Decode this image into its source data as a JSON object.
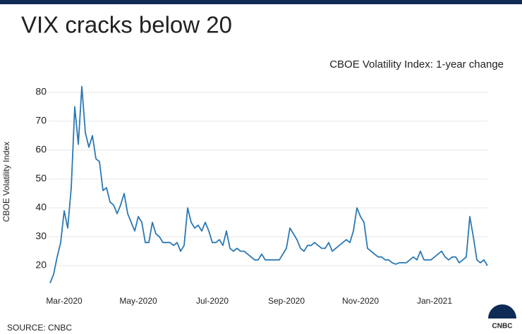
{
  "chart_data": {
    "type": "line",
    "title": "VIX cracks below 20",
    "subtitle": "CBOE Volatility Index: 1-year change",
    "y_label": "CBOE Volatility Index",
    "source": "SOURCE: CNBC",
    "logo": "CNBC",
    "categories": [
      null,
      null,
      null,
      null,
      "Mar-2020",
      null,
      null,
      null,
      null,
      null,
      null,
      null,
      null,
      null,
      null,
      null,
      null,
      null,
      null,
      null,
      null,
      null,
      null,
      null,
      null,
      "May-2020",
      null,
      null,
      null,
      null,
      null,
      null,
      null,
      null,
      null,
      null,
      null,
      null,
      null,
      null,
      null,
      null,
      null,
      null,
      null,
      null,
      "Jul-2020",
      null,
      null,
      null,
      null,
      null,
      null,
      null,
      null,
      null,
      null,
      null,
      null,
      null,
      null,
      null,
      null,
      null,
      null,
      null,
      null,
      "Sep-2020",
      null,
      null,
      null,
      null,
      null,
      null,
      null,
      null,
      null,
      null,
      null,
      null,
      null,
      null,
      null,
      null,
      null,
      null,
      null,
      null,
      "Nov-2020",
      null,
      null,
      null,
      null,
      null,
      null,
      null,
      null,
      null,
      null,
      null,
      null,
      null,
      null,
      null,
      null,
      null,
      null,
      null,
      null,
      "Jan-2021",
      null,
      null,
      null,
      null,
      null,
      null,
      null,
      null,
      null,
      null,
      null,
      null,
      null,
      null,
      null
    ],
    "values": [
      14,
      17,
      23,
      28,
      39,
      33,
      47,
      75,
      62,
      82,
      66,
      61,
      65,
      57,
      56,
      46,
      47,
      42,
      41,
      38,
      41,
      45,
      38,
      35,
      32,
      37,
      35,
      28,
      28,
      35,
      31,
      30,
      28,
      28,
      28,
      27,
      28,
      25,
      27,
      40,
      35,
      33,
      34,
      32,
      35,
      32,
      28,
      28,
      29,
      27,
      32,
      26,
      25,
      26,
      25,
      25,
      24,
      23,
      22,
      22,
      24,
      22,
      22,
      22,
      22,
      22,
      24,
      26,
      33,
      31,
      29,
      26,
      25,
      27,
      27,
      28,
      27,
      26,
      26,
      28,
      25,
      26,
      27,
      28,
      29,
      28,
      32,
      40,
      37,
      35,
      26,
      25,
      24,
      23,
      23,
      22,
      22,
      21,
      20.5,
      21,
      21,
      21,
      22,
      23,
      22,
      25,
      22,
      22,
      22,
      23,
      24,
      25,
      23,
      22,
      23,
      23,
      21,
      22,
      23,
      37,
      30,
      22,
      21,
      22,
      20
    ],
    "color": "#2b78b3",
    "ylim": [
      12,
      84
    ],
    "yticks": [
      20,
      30,
      40,
      50,
      60,
      70,
      80
    ],
    "grid": true
  }
}
